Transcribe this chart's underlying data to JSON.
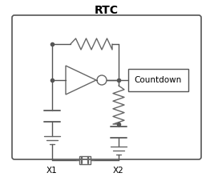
{
  "title": "RTC",
  "countdown_label": "Countdown",
  "x1_label": "X1",
  "x2_label": "X2",
  "bg_color": "#ffffff",
  "border_color": "#555555",
  "component_color": "#666666",
  "line_color": "#555555",
  "title_fontsize": 10,
  "label_fontsize": 7.5,
  "fig_width": 2.62,
  "fig_height": 2.21,
  "dpi": 100
}
